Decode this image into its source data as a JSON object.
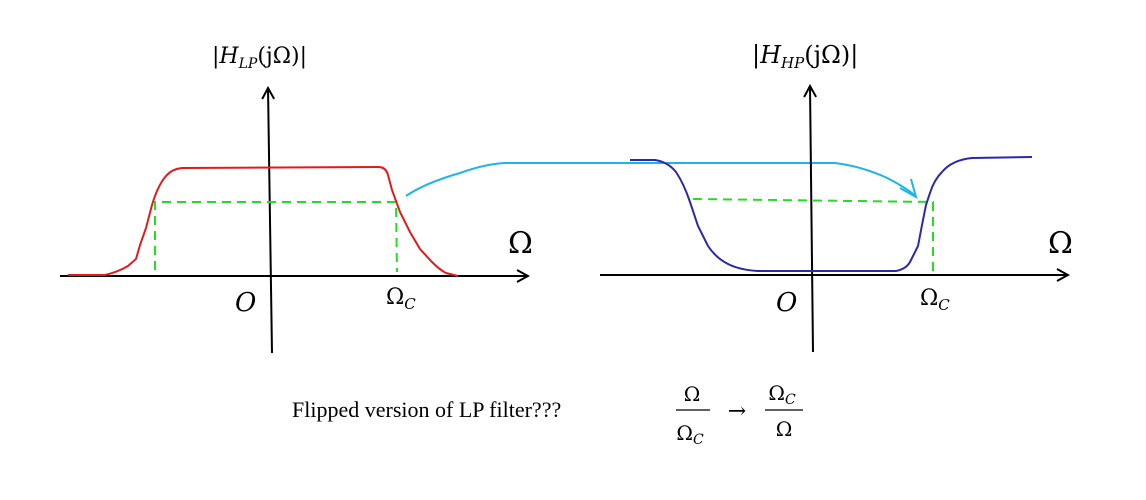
{
  "left_plot": {
    "ylabel_bar_open": "|",
    "ylabel_H": "H",
    "ylabel_sub": "LP",
    "ylabel_args": "(jΩ)",
    "ylabel_bar_close": "|",
    "xlabel": "Ω",
    "origin": "O",
    "cutoff_main": "Ω",
    "cutoff_sub": "C"
  },
  "right_plot": {
    "ylabel_bar_open": "|",
    "ylabel_H": "H",
    "ylabel_sub": "HP",
    "ylabel_args": "(jΩ)",
    "ylabel_bar_close": "|",
    "xlabel": "Ω",
    "origin": "O",
    "cutoff_main": "Ω",
    "cutoff_sub": "C"
  },
  "caption": {
    "text": "Flipped version of LP filter???",
    "frac1_num": "Ω",
    "frac1_den_main": "Ω",
    "frac1_den_sub": "C",
    "arrow": "→",
    "frac2_num_main": "Ω",
    "frac2_num_sub": "C",
    "frac2_den": "Ω"
  },
  "colors": {
    "lowpass_curve": "#e01b1b",
    "highpass_curve": "#2a2aa8",
    "dashed_guides": "#22dd22",
    "mapping_arrow": "#1fb4e8",
    "axes": "#000000"
  }
}
